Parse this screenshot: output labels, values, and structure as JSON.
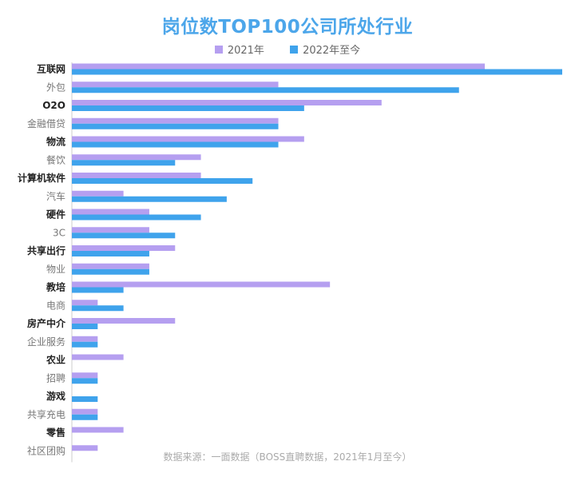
{
  "title": "岗位数TOP100公司所处行业",
  "source": "数据来源：一面数据（BOSS直聘数据，2021年1月至今）",
  "colors": {
    "title": "#4ca6ea",
    "series_2021": "#b59ff0",
    "series_2022": "#3fa3ec",
    "axis": "#cccccc",
    "label_bold": "#222222",
    "label_normal": "#777777"
  },
  "chart_data": {
    "type": "bar",
    "orientation": "horizontal",
    "title": "岗位数TOP100公司所处行业",
    "xlabel": "",
    "ylabel": "",
    "grid": false,
    "legend": "top-center",
    "xlim": [
      0,
      38
    ],
    "categories": [
      "互联网",
      "外包",
      "O2O",
      "金融借贷",
      "物流",
      "餐饮",
      "计算机软件",
      "汽车",
      "硬件",
      "3C",
      "共享出行",
      "物业",
      "教培",
      "电商",
      "房产中介",
      "企业服务",
      "农业",
      "招聘",
      "游戏",
      "共享充电",
      "零售",
      "社区团购"
    ],
    "bold_categories": [
      "互联网",
      "O2O",
      "物流",
      "计算机软件",
      "硬件",
      "共享出行",
      "教培",
      "房产中介",
      "农业",
      "游戏",
      "零售"
    ],
    "series": [
      {
        "name": "2021年",
        "values": [
          32,
          16,
          24,
          16,
          18,
          10,
          10,
          4,
          6,
          6,
          8,
          6,
          20,
          2,
          8,
          2,
          4,
          2,
          0,
          2,
          4,
          2
        ]
      },
      {
        "name": "2022年至今",
        "values": [
          38,
          30,
          18,
          16,
          16,
          8,
          14,
          12,
          10,
          8,
          6,
          6,
          4,
          4,
          2,
          2,
          0,
          2,
          2,
          2,
          0,
          0
        ]
      }
    ]
  }
}
